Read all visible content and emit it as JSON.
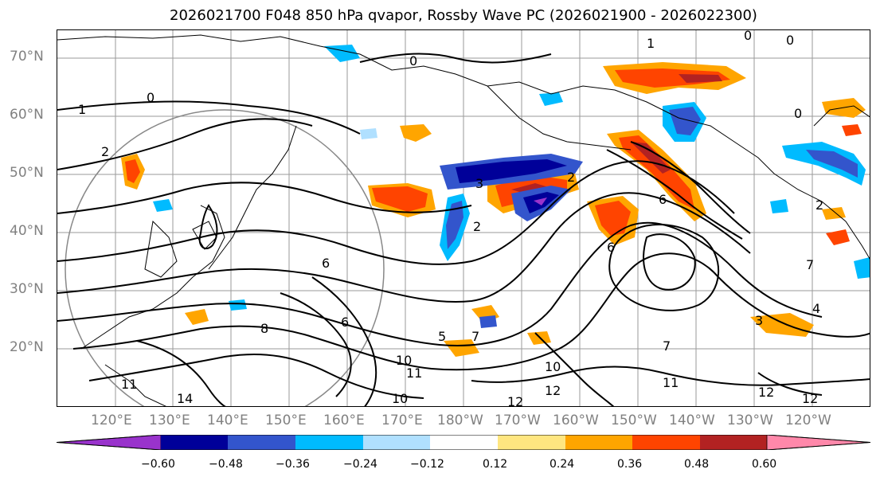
{
  "title": "2026021700 F048 850 hPa qvapor, Rossby Wave PC (2026021900 - 2026022300)",
  "map": {
    "latitude_labels": [
      "70°N",
      "60°N",
      "50°N",
      "40°N",
      "30°N",
      "20°N"
    ],
    "longitude_labels": [
      "120°E",
      "130°E",
      "140°E",
      "150°E",
      "160°E",
      "170°E",
      "180°W",
      "170°W",
      "160°W",
      "150°W",
      "140°W",
      "130°W",
      "120°W"
    ],
    "contour_labels": [
      "0",
      "0",
      "1",
      "0",
      "0",
      "1",
      "0",
      "2",
      "2",
      "2",
      "2",
      "3",
      "6",
      "6",
      "6",
      "5",
      "6",
      "7",
      "7",
      "7",
      "4",
      "3",
      "10",
      "11",
      "10",
      "11",
      "12",
      "12",
      "10",
      "12",
      "11",
      "14",
      "12",
      "8"
    ],
    "fill_colors": {
      "neg_strong": "#9933cc",
      "neg_dark": "#000099",
      "neg_mid": "#3355cc",
      "neg_light": "#00bbff",
      "neg_pale": "#b0e0ff",
      "pos_pale": "#ffe680",
      "pos_light": "#ffa500",
      "pos_mid": "#ff4400",
      "pos_strong": "#b22222",
      "pos_pink": "#ff88aa"
    }
  },
  "colorbar": {
    "colors": [
      "#9933cc",
      "#000099",
      "#3355cc",
      "#00bbff",
      "#b0e0ff",
      "#ffffff",
      "#ffe680",
      "#ffa500",
      "#ff4400",
      "#b22222",
      "#ff88aa"
    ],
    "tick_labels": [
      "−0.60",
      "−0.48",
      "−0.36",
      "−0.24",
      "−0.12",
      "0.12",
      "0.24",
      "0.36",
      "0.48",
      "0.60"
    ]
  }
}
